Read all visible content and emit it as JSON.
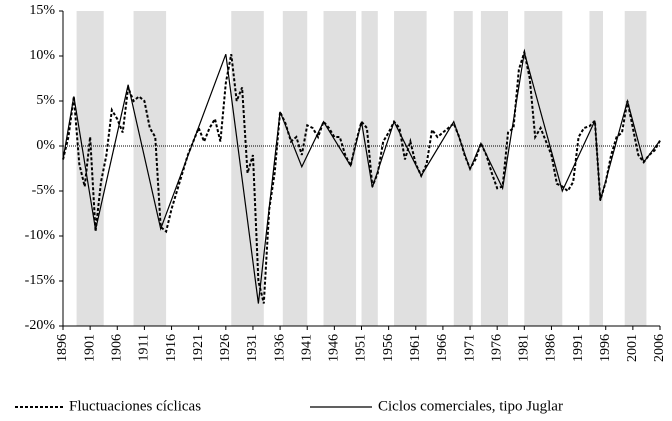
{
  "chart_data": {
    "type": "line",
    "shaded": [
      [
        1898.5,
        1903.5
      ],
      [
        1909,
        1915
      ],
      [
        1927,
        1933
      ],
      [
        1936.5,
        1941
      ],
      [
        1944,
        1950
      ],
      [
        1951,
        1954
      ],
      [
        1957,
        1963
      ],
      [
        1968,
        1971.5
      ],
      [
        1973,
        1978
      ],
      [
        1981,
        1988
      ],
      [
        1993,
        1995.5
      ],
      [
        1999.5,
        2003.5
      ]
    ],
    "shade_color": "#e0e0e0",
    "series": [
      {
        "name": "Fluctuaciones cíclicas",
        "color": "#000000",
        "dash": true,
        "x": [
          1896,
          1897,
          1898,
          1899,
          1900,
          1901,
          1902,
          1903,
          1904,
          1905,
          1906,
          1907,
          1908,
          1909,
          1910,
          1911,
          1912,
          1913,
          1914,
          1915,
          1916,
          1917,
          1918,
          1919,
          1920,
          1921,
          1922,
          1923,
          1924,
          1925,
          1926,
          1927,
          1928,
          1929,
          1930,
          1931,
          1932,
          1933,
          1934,
          1935,
          1936,
          1937,
          1938,
          1939,
          1940,
          1941,
          1942,
          1943,
          1944,
          1945,
          1946,
          1947,
          1948,
          1949,
          1950,
          1951,
          1952,
          1953,
          1954,
          1955,
          1956,
          1957,
          1958,
          1959,
          1960,
          1961,
          1962,
          1963,
          1964,
          1965,
          1966,
          1967,
          1968,
          1969,
          1970,
          1971,
          1972,
          1973,
          1974,
          1975,
          1976,
          1977,
          1978,
          1979,
          1980,
          1981,
          1982,
          1983,
          1984,
          1985,
          1986,
          1987,
          1988,
          1989,
          1990,
          1991,
          1992,
          1993,
          1994,
          1995,
          1996,
          1997,
          1998,
          1999,
          2000,
          2001,
          2002,
          2003,
          2004,
          2005,
          2006
        ],
        "values": [
          -1.5,
          1,
          5.5,
          -2,
          -4.5,
          1,
          -9.5,
          -4,
          -1,
          4,
          3,
          1.5,
          6.5,
          5,
          5.5,
          5,
          2,
          1,
          -9,
          -9.5,
          -7,
          -5,
          -3,
          -1,
          0.5,
          2,
          0.5,
          2,
          3,
          0.5,
          7,
          10.2,
          5,
          6.5,
          -3,
          -1,
          -15,
          -17.5,
          -7,
          -3,
          3.8,
          2.5,
          0.5,
          1,
          -1,
          2.3,
          2,
          1,
          2.7,
          2,
          1,
          1,
          -1,
          -2.2,
          0.5,
          2.7,
          2,
          -4.5,
          -3,
          0.5,
          1.5,
          2.7,
          2,
          -1.5,
          0.5,
          -2,
          -3.3,
          -2,
          1.8,
          1,
          1.5,
          2,
          2.5,
          1,
          -1,
          -2.5,
          -1.5,
          0.3,
          -1,
          -3,
          -4.7,
          -4.5,
          1.5,
          2,
          8.5,
          10.4,
          7.5,
          1,
          2,
          0.5,
          -1,
          -4.2,
          -4.5,
          -5,
          -4,
          1,
          2,
          2.2,
          2.8,
          -6,
          -4,
          -1,
          1,
          1.5,
          5,
          2,
          -1,
          -1.8,
          -1,
          -0.5,
          0.6
        ]
      },
      {
        "name": "Ciclos comerciales, tipo Juglar",
        "color": "#000000",
        "dash": false,
        "x": [
          1896,
          1898,
          1902,
          1908,
          1914,
          1926,
          1932,
          1936,
          1940,
          1944,
          1949,
          1951,
          1953,
          1957,
          1962,
          1968,
          1971,
          1973,
          1977,
          1981,
          1988,
          1994,
          1995,
          2000,
          2003,
          2006
        ],
        "values": [
          -1.5,
          5.5,
          -9.3,
          6.8,
          -9.2,
          10.2,
          -17.5,
          3.8,
          -2.3,
          2.7,
          -2.2,
          2.7,
          -4.6,
          2.7,
          -3.3,
          2.7,
          -2.6,
          0.3,
          -4.7,
          10.4,
          -5,
          2.8,
          -6.1,
          5,
          -1.8,
          0.6
        ]
      }
    ],
    "xlim": [
      1896,
      2006
    ],
    "xticks": [
      1896,
      1901,
      1906,
      1911,
      1916,
      1921,
      1926,
      1931,
      1936,
      1941,
      1946,
      1951,
      1956,
      1961,
      1966,
      1971,
      1976,
      1981,
      1986,
      1991,
      1996,
      2001,
      2006
    ],
    "ylim": [
      -20,
      15
    ],
    "yticks": [
      {
        "value": -20,
        "label": "-20%"
      },
      {
        "value": -15,
        "label": "-15%"
      },
      {
        "value": -10,
        "label": "-10%"
      },
      {
        "value": -5,
        "label": "-5%"
      },
      {
        "value": 0,
        "label": "0%"
      },
      {
        "value": 5,
        "label": "5%"
      },
      {
        "value": 10,
        "label": "10%"
      },
      {
        "value": 15,
        "label": "15%"
      }
    ],
    "legend": "bottom"
  }
}
